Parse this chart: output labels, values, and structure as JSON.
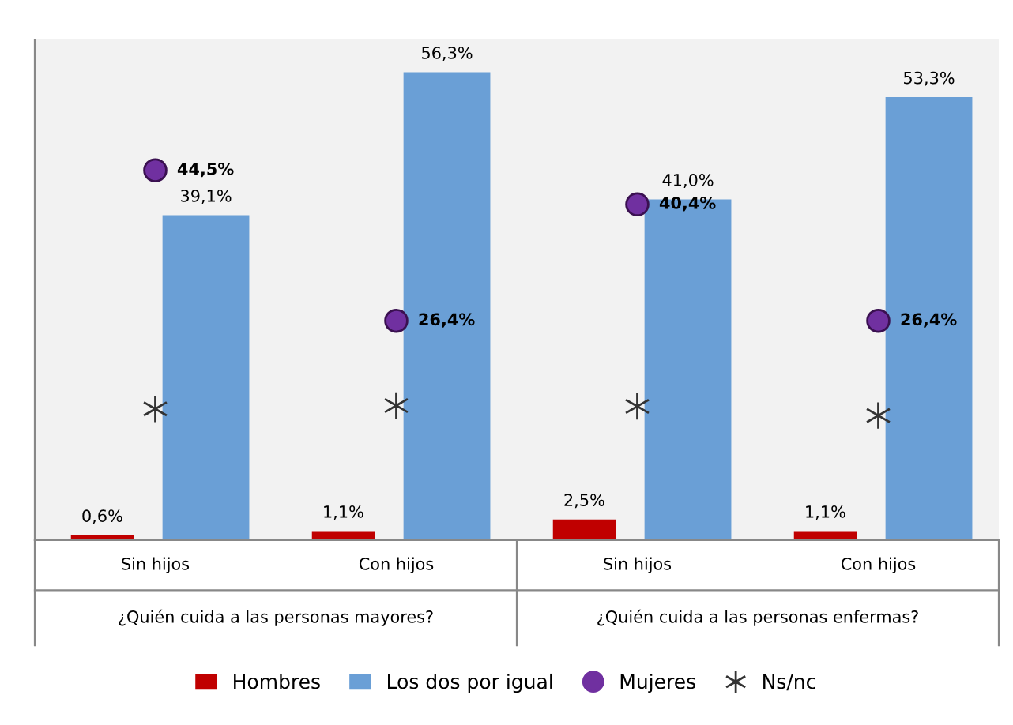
{
  "chart_data": {
    "type": "bar",
    "categories": [
      "Sin hijos",
      "Con hijos",
      "Sin hijos",
      "Con hijos"
    ],
    "annotations": [
      "¿Quién cuida a las personas mayores?",
      "¿Quién cuida a las personas enfermas?"
    ],
    "series": [
      {
        "name": "Hombres",
        "color": "#c00000",
        "values": [
          0.6,
          1.1,
          2.5,
          1.1
        ],
        "value_labels": [
          "0,6%",
          "1,1%",
          "2,5%",
          "1,1%"
        ]
      },
      {
        "name": "Los dos por igual",
        "color": "#6a9fd6",
        "values": [
          39.1,
          56.3,
          41.0,
          53.3
        ],
        "value_labels": [
          "39,1%",
          "56,3%",
          "41,0%",
          "53,3%"
        ]
      },
      {
        "name": "Mujeres",
        "type": "scatter",
        "marker": "circle",
        "color": "#7030a0",
        "values": [
          44.5,
          26.4,
          40.4,
          26.4
        ],
        "value_labels": [
          "44,5%",
          "26,4%",
          "40,4%",
          "26,4%"
        ]
      },
      {
        "name": "Ns/nc",
        "type": "scatter",
        "marker": "cross",
        "color": "#333333",
        "values": [
          15.8,
          16.2,
          16.1,
          15.0
        ],
        "value_labels": [
          null,
          null,
          null,
          null
        ]
      }
    ],
    "legend": "bottom"
  }
}
